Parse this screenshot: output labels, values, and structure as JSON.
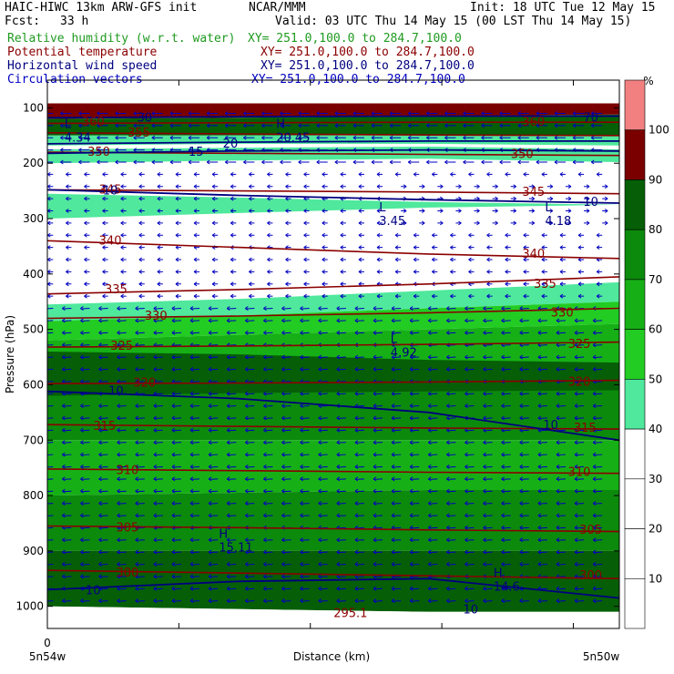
{
  "header": {
    "model": "HAIC-HIWC 13km ARW-GFS init",
    "org": "NCAR/MMM",
    "init": "Init: 18 UTC Tue 12 May 15",
    "fcst_label": "Fcst:",
    "fcst_value": "33 h",
    "valid": "Valid: 03 UTC Thu 14 May 15 (00 LST Thu 14 May 15)",
    "fields": [
      {
        "name": "Relative humidity (w.r.t. water)",
        "xy": "XY= 251.0,100.0 to 284.7,100.0"
      },
      {
        "name": "Potential temperature",
        "xy": "XY= 251.0,100.0 to 284.7,100.0"
      },
      {
        "name": "Horizontal wind speed",
        "xy": "XY= 251.0,100.0 to 284.7,100.0"
      },
      {
        "name": "Circulation vectors",
        "xy": "XY= 251.0,100.0 to 284.7,100.0"
      }
    ]
  },
  "colors": {
    "rh": "#1f9a1f",
    "theta": "#8b0000",
    "wind": "#000080",
    "circ": "#0000c0",
    "rh_fills": [
      "#ffffff",
      "#ffffff",
      "#ffffff",
      "#ffffff",
      "#ffffff",
      "#4fe89c",
      "#22cc22",
      "#16b016",
      "#0c8a0c",
      "#065f06",
      "#7a0000",
      "#f28080"
    ]
  },
  "chart_data": {
    "type": "heatmap",
    "xlabel": "Distance (km)",
    "ylabel": "Pressure (hPa)",
    "x_start_label": "0",
    "x_left_label": "5n54w",
    "x_right_label": "5n50w",
    "y_ticks": [
      100,
      200,
      300,
      400,
      500,
      600,
      700,
      800,
      900,
      1000
    ],
    "ylim": [
      1040,
      50
    ],
    "colorbar": {
      "unit": "%",
      "levels": [
        10,
        20,
        30,
        40,
        50,
        60,
        70,
        80,
        90,
        100
      ]
    },
    "theta_contours": [
      {
        "value": 300,
        "p": [
          935,
          940,
          945,
          950
        ]
      },
      {
        "value": 305,
        "p": [
          855,
          858,
          862,
          865
        ]
      },
      {
        "value": 310,
        "p": [
          752,
          755,
          758,
          760
        ]
      },
      {
        "value": 315,
        "p": [
          672,
          675,
          678,
          680
        ]
      },
      {
        "value": 320,
        "p": [
          598,
          597,
          595,
          592
        ]
      },
      {
        "value": 325,
        "p": [
          532,
          530,
          527,
          523
        ]
      },
      {
        "value": 330,
        "p": [
          480,
          476,
          470,
          462
        ]
      },
      {
        "value": 335,
        "p": [
          436,
          428,
          418,
          405
        ]
      },
      {
        "value": 340,
        "p": [
          340,
          352,
          364,
          372
        ]
      },
      {
        "value": 345,
        "p": [
          248,
          250,
          252,
          255
        ]
      },
      {
        "value": 350,
        "p": [
          180,
          182,
          184,
          186
        ]
      },
      {
        "value": 355,
        "p": [
          145,
          147,
          149,
          150
        ]
      },
      {
        "value": 360,
        "p": [
          128,
          127,
          126,
          126
        ]
      }
    ],
    "theta_labels": [
      {
        "text": "300",
        "x": 0.14,
        "p": 940
      },
      {
        "text": "305",
        "x": 0.14,
        "p": 858
      },
      {
        "text": "310",
        "x": 0.14,
        "p": 755
      },
      {
        "text": "315",
        "x": 0.1,
        "p": 675
      },
      {
        "text": "320",
        "x": 0.17,
        "p": 597
      },
      {
        "text": "325",
        "x": 0.13,
        "p": 530
      },
      {
        "text": "330",
        "x": 0.19,
        "p": 476
      },
      {
        "text": "335",
        "x": 0.12,
        "p": 428
      },
      {
        "text": "340",
        "x": 0.11,
        "p": 340
      },
      {
        "text": "345",
        "x": 0.11,
        "p": 248
      },
      {
        "text": "350",
        "x": 0.09,
        "p": 180
      },
      {
        "text": "355",
        "x": 0.16,
        "p": 145
      },
      {
        "text": "360",
        "x": 0.08,
        "p": 126
      },
      {
        "text": "345",
        "x": 0.85,
        "p": 252
      },
      {
        "text": "340",
        "x": 0.85,
        "p": 364
      },
      {
        "text": "335",
        "x": 0.87,
        "p": 418
      },
      {
        "text": "330",
        "x": 0.9,
        "p": 470
      },
      {
        "text": "325",
        "x": 0.93,
        "p": 527
      },
      {
        "text": "320",
        "x": 0.93,
        "p": 595
      },
      {
        "text": "315",
        "x": 0.94,
        "p": 678
      },
      {
        "text": "310",
        "x": 0.93,
        "p": 758
      },
      {
        "text": "305",
        "x": 0.95,
        "p": 862
      },
      {
        "text": "300",
        "x": 0.95,
        "p": 945
      },
      {
        "text": "350",
        "x": 0.83,
        "p": 184
      },
      {
        "text": "360",
        "x": 0.85,
        "p": 126
      },
      {
        "text": "295.1",
        "x": 0.53,
        "p": 1013
      }
    ],
    "wind_contours": [
      {
        "value": 10,
        "p": [
          612,
          625,
          650,
          700
        ]
      },
      {
        "value": 10,
        "p": [
          248,
          258,
          266,
          272
        ]
      },
      {
        "value": 10,
        "p": [
          970,
          955,
          950,
          985
        ]
      },
      {
        "value": 15,
        "p": [
          182,
          178,
          176,
          178
        ]
      },
      {
        "value": 20,
        "p": [
          165,
          162,
          160,
          160
        ]
      },
      {
        "value": 30,
        "p": [
          118,
          116,
          115,
          115
        ]
      }
    ],
    "wind_labels": [
      {
        "text": "10",
        "x": 0.12,
        "p": 612
      },
      {
        "text": "10",
        "x": 0.11,
        "p": 250
      },
      {
        "text": "10",
        "x": 0.08,
        "p": 972
      },
      {
        "text": "10",
        "x": 0.74,
        "p": 1006
      },
      {
        "text": "10",
        "x": 0.88,
        "p": 673
      },
      {
        "text": "10",
        "x": 0.95,
        "p": 270
      },
      {
        "text": "15",
        "x": 0.26,
        "p": 180
      },
      {
        "text": "20",
        "x": 0.32,
        "p": 165
      },
      {
        "text": "30",
        "x": 0.17,
        "p": 118
      },
      {
        "text": "70",
        "x": 0.95,
        "p": 118
      }
    ],
    "extrema": [
      {
        "letter": "L",
        "value": "4.34",
        "x": 0.03,
        "p": 140
      },
      {
        "letter": "H",
        "value": "20.45",
        "x": 0.4,
        "p": 140
      },
      {
        "letter": "L",
        "value": "3.45",
        "x": 0.58,
        "p": 290
      },
      {
        "letter": "L",
        "value": "4.18",
        "x": 0.87,
        "p": 290
      },
      {
        "letter": "L",
        "value": "4.92",
        "x": 0.6,
        "p": 528
      },
      {
        "letter": "H",
        "value": "15.11",
        "x": 0.3,
        "p": 880
      },
      {
        "letter": "H",
        "value": "14.6",
        "x": 0.78,
        "p": 950
      }
    ]
  }
}
